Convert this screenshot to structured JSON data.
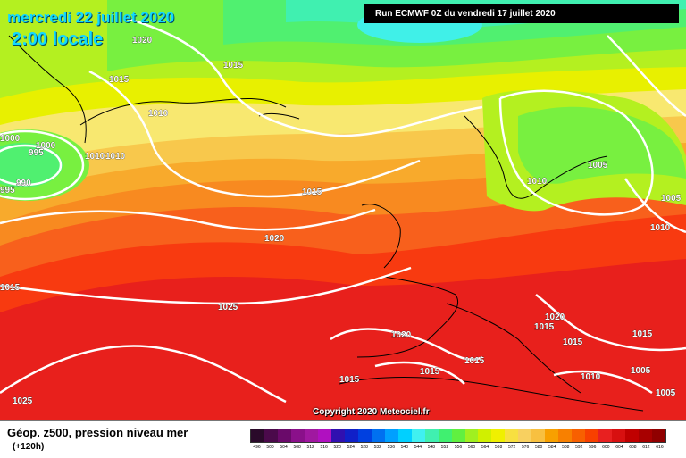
{
  "header": {
    "date": "mercredi 22 juillet 2020",
    "time": "2:00 locale",
    "run": "Run ECMWF 0Z du vendredi 17 juillet 2020"
  },
  "copyright": "Copyright 2020 Meteociel.fr",
  "footer": {
    "parameter": "Géop. z500, pression niveau mer",
    "lead_time": "(+120h)"
  },
  "isobar_labels": [
    "1020",
    "1015",
    "1015",
    "1010",
    "1000",
    "995",
    "1000",
    "1010",
    "990",
    "995",
    "1015",
    "1020",
    "1025",
    "1025",
    "1015",
    "1015",
    "1005",
    "1010",
    "1010",
    "1005",
    "1020",
    "1015",
    "1015",
    "1020",
    "1015",
    "1015",
    "1015",
    "1010",
    "1005",
    "1005",
    "1015"
  ],
  "scale": {
    "labels": [
      "496",
      "500",
      "504",
      "508",
      "512",
      "516",
      "520",
      "524",
      "528",
      "532",
      "536",
      "540",
      "544",
      "548",
      "552",
      "556",
      "560",
      "564",
      "568",
      "572",
      "576",
      "580",
      "584",
      "588",
      "592",
      "596",
      "600",
      "604",
      "608",
      "612",
      "616"
    ],
    "colors": [
      "#2a0a2a",
      "#4b0a4b",
      "#6a0a6a",
      "#8a108a",
      "#a018a0",
      "#b010c0",
      "#3010b0",
      "#1020c8",
      "#0040e0",
      "#0070f0",
      "#00a0ff",
      "#00d0ff",
      "#40f0f0",
      "#40f0b0",
      "#40f070",
      "#60f040",
      "#a0f020",
      "#d0f000",
      "#f0f000",
      "#f8e040",
      "#f8d060",
      "#f8c040",
      "#f8a000",
      "#f88000",
      "#f86000",
      "#f84000",
      "#e82020",
      "#d81010",
      "#c00000",
      "#a80000",
      "#900000"
    ],
    "map_colors": {
      "deep_red": "#e8201c",
      "red": "#f83a10",
      "orange_red": "#f8601c",
      "orange": "#f88a20",
      "orange_light": "#f8aa2c",
      "yellow_orange": "#f8c84c",
      "yellow": "#f8e870",
      "yellow_green": "#e8f000",
      "green_light": "#b4f020",
      "green": "#78f040",
      "green_teal": "#50f070",
      "teal": "#40f0b0",
      "cyan": "#40f0e8"
    }
  }
}
